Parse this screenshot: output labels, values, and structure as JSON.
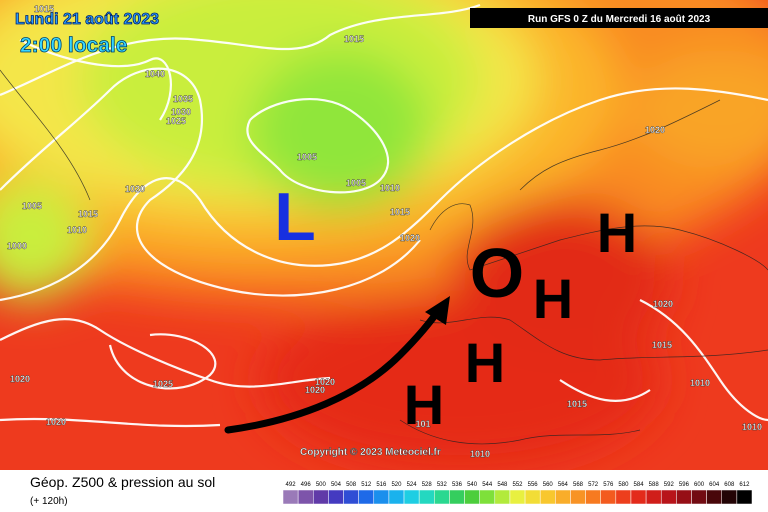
{
  "header": {
    "date": "Lundi 21 août 2023",
    "local_time": "2:00 locale",
    "run": "Run GFS 0 Z du Mercredi 16 août 2023"
  },
  "isobar_labels": [
    "1015",
    "1040",
    "1035",
    "1030",
    "1025",
    "1020",
    "1005",
    "1015",
    "1010",
    "1000",
    "1015",
    "1005",
    "1005",
    "1010",
    "1015",
    "1020",
    "1020",
    "1020",
    "1015",
    "1010",
    "1010",
    "1015",
    "1025",
    "1020",
    "1020",
    "1020",
    "1020",
    "101",
    "1010"
  ],
  "symbols": {
    "low": "L",
    "center": "O",
    "highs": [
      "H",
      "H",
      "H",
      "H"
    ]
  },
  "copyright": "Copyright © 2023 Meteociel.fr",
  "footer": {
    "title": "Géop. Z500 & pression au sol",
    "lead_time": "(+ 120h)"
  },
  "scale": {
    "values": [
      492,
      496,
      500,
      504,
      508,
      512,
      516,
      520,
      524,
      528,
      532,
      536,
      540,
      544,
      548,
      552,
      556,
      560,
      564,
      568,
      572,
      576,
      580,
      584,
      588,
      592,
      596,
      600,
      604,
      608,
      612
    ]
  }
}
